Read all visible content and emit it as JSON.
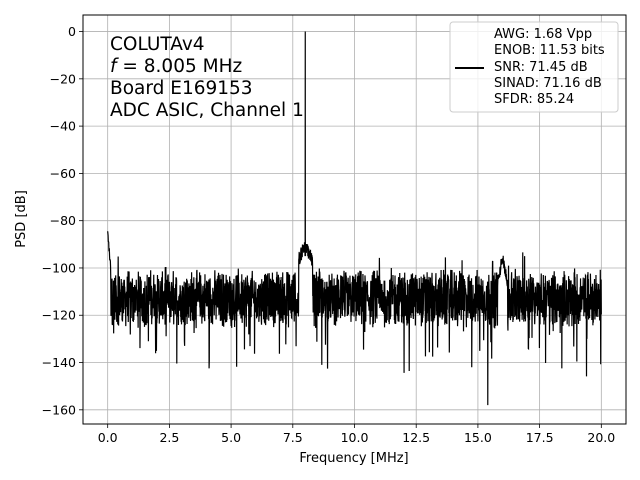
{
  "chart_data": {
    "type": "line",
    "xlabel": "Frequency [MHz]",
    "ylabel": "PSD [dB]",
    "xlim": [
      -1.0,
      21.0
    ],
    "ylim": [
      -166,
      7
    ],
    "xticks": [
      0.0,
      2.5,
      5.0,
      7.5,
      10.0,
      12.5,
      15.0,
      17.5,
      20.0
    ],
    "xtick_labels": [
      "0.0",
      "2.5",
      "5.0",
      "7.5",
      "10.0",
      "12.5",
      "15.0",
      "17.5",
      "20.0"
    ],
    "yticks": [
      0,
      -20,
      -40,
      -60,
      -80,
      -100,
      -120,
      -140,
      -160
    ],
    "ytick_labels": [
      "0",
      "−20",
      "−40",
      "−60",
      "−80",
      "−100",
      "−120",
      "−140",
      "−160"
    ],
    "grid": true,
    "annotation": {
      "line1": "COLUTAv4",
      "line2_var": "f",
      "line2_rest": " = 8.005 MHz",
      "line3": "Board E169153",
      "line4": "ADC ASIC, Channel 1"
    },
    "legend": {
      "placement": "upper-right",
      "entries": [
        "AWG: 1.68 Vpp",
        "ENOB: 11.53 bits",
        "SNR: 71.45 dB",
        "SINAD: 71.16 dB",
        "SFDR: 85.24"
      ],
      "line_entry_index": 2
    },
    "series": [
      {
        "color": "#000000",
        "noise_floor_db": -113,
        "features": [
          {
            "kind": "dc",
            "x": 0.0,
            "y": -85
          },
          {
            "kind": "fundamental",
            "x": 8.005,
            "y": 0
          },
          {
            "kind": "skirt",
            "x_range": [
              7.75,
              8.3
            ],
            "y": -90
          },
          {
            "kind": "spur",
            "x": 16.0,
            "y": -95
          },
          {
            "kind": "dip",
            "x": 15.4,
            "y": -158
          },
          {
            "kind": "dip",
            "x": 14.75,
            "y": -142
          }
        ]
      }
    ]
  }
}
